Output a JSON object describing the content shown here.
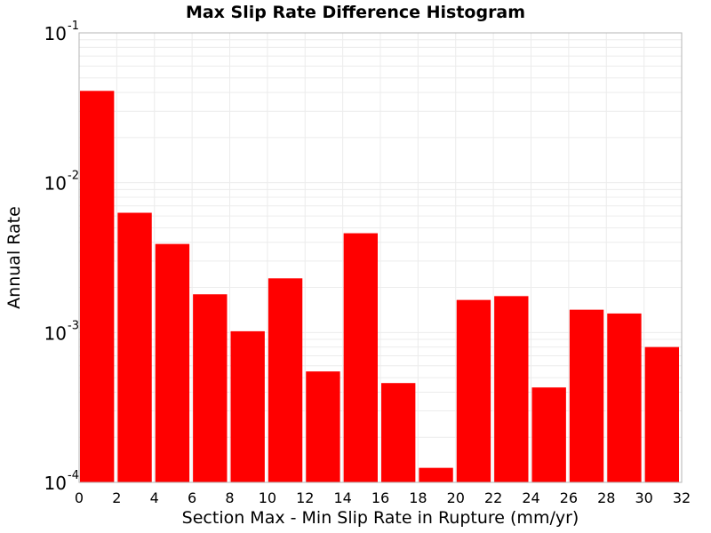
{
  "chart_data": {
    "type": "bar",
    "title": "Max Slip Rate Difference Histogram",
    "xlabel": "Section Max - Min Slip Rate in Rupture (mm/yr)",
    "ylabel": "Annual Rate",
    "y_scale": "log",
    "ylim": [
      0.0001,
      0.1
    ],
    "xlim": [
      0,
      32
    ],
    "x_ticks": [
      "0",
      "2",
      "4",
      "6",
      "8",
      "10",
      "12",
      "14",
      "16",
      "18",
      "20",
      "22",
      "24",
      "26",
      "28",
      "30",
      "32"
    ],
    "y_ticks": [
      {
        "base": "10",
        "exp": "-4",
        "value": 0.0001
      },
      {
        "base": "10",
        "exp": "-3",
        "value": 0.001
      },
      {
        "base": "10",
        "exp": "-2",
        "value": 0.01
      },
      {
        "base": "10",
        "exp": "-1",
        "value": 0.1
      }
    ],
    "bin_width": 2,
    "bins": [
      {
        "x_start": 0,
        "value": 0.041
      },
      {
        "x_start": 2,
        "value": 0.0063
      },
      {
        "x_start": 4,
        "value": 0.0039
      },
      {
        "x_start": 6,
        "value": 0.0018
      },
      {
        "x_start": 8,
        "value": 0.00102
      },
      {
        "x_start": 10,
        "value": 0.0023
      },
      {
        "x_start": 12,
        "value": 0.00055
      },
      {
        "x_start": 14,
        "value": 0.0046
      },
      {
        "x_start": 16,
        "value": 0.00046
      },
      {
        "x_start": 18,
        "value": 0.000125
      },
      {
        "x_start": 20,
        "value": 0.00165
      },
      {
        "x_start": 22,
        "value": 0.00175
      },
      {
        "x_start": 24,
        "value": 0.00043
      },
      {
        "x_start": 26,
        "value": 0.00142
      },
      {
        "x_start": 28,
        "value": 0.00134
      },
      {
        "x_start": 30,
        "value": 0.0008
      }
    ],
    "bar_color": "#ff0000",
    "grid": true,
    "grid_color": "#ececec"
  }
}
